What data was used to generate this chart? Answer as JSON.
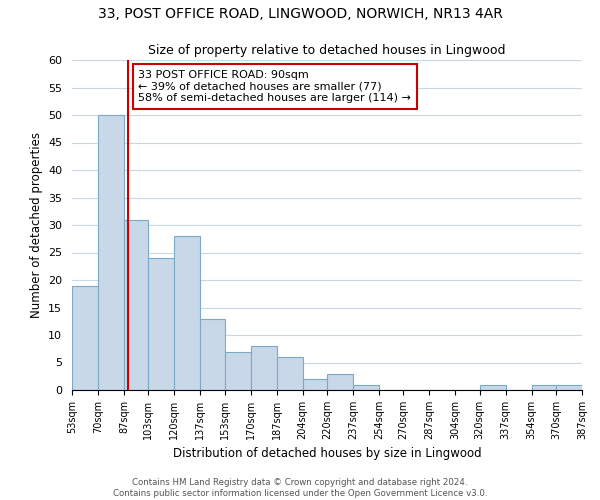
{
  "title1": "33, POST OFFICE ROAD, LINGWOOD, NORWICH, NR13 4AR",
  "title2": "Size of property relative to detached houses in Lingwood",
  "xlabel": "Distribution of detached houses by size in Lingwood",
  "ylabel": "Number of detached properties",
  "bar_edges": [
    53,
    70,
    87,
    103,
    120,
    137,
    153,
    170,
    187,
    204,
    220,
    237,
    254,
    270,
    287,
    304,
    320,
    337,
    354,
    370,
    387
  ],
  "bar_heights": [
    19,
    50,
    31,
    24,
    28,
    13,
    7,
    8,
    6,
    2,
    3,
    1,
    0,
    0,
    0,
    0,
    1,
    0,
    1,
    1
  ],
  "bar_color": "#c8d8e8",
  "bar_edge_color": "#7aaac8",
  "vline_x": 90,
  "vline_color": "#cc0000",
  "ylim": [
    0,
    60
  ],
  "yticks": [
    0,
    5,
    10,
    15,
    20,
    25,
    30,
    35,
    40,
    45,
    50,
    55,
    60
  ],
  "tick_labels": [
    "53sqm",
    "70sqm",
    "87sqm",
    "103sqm",
    "120sqm",
    "137sqm",
    "153sqm",
    "170sqm",
    "187sqm",
    "204sqm",
    "220sqm",
    "237sqm",
    "254sqm",
    "270sqm",
    "287sqm",
    "304sqm",
    "320sqm",
    "337sqm",
    "354sqm",
    "370sqm",
    "387sqm"
  ],
  "annotation_title": "33 POST OFFICE ROAD: 90sqm",
  "annotation_line1": "← 39% of detached houses are smaller (77)",
  "annotation_line2": "58% of semi-detached houses are larger (114) →",
  "annotation_box_color": "#ffffff",
  "annotation_box_edge": "#cc0000",
  "footer1": "Contains HM Land Registry data © Crown copyright and database right 2024.",
  "footer2": "Contains public sector information licensed under the Open Government Licence v3.0.",
  "background_color": "#ffffff",
  "grid_color": "#c8d8e8"
}
